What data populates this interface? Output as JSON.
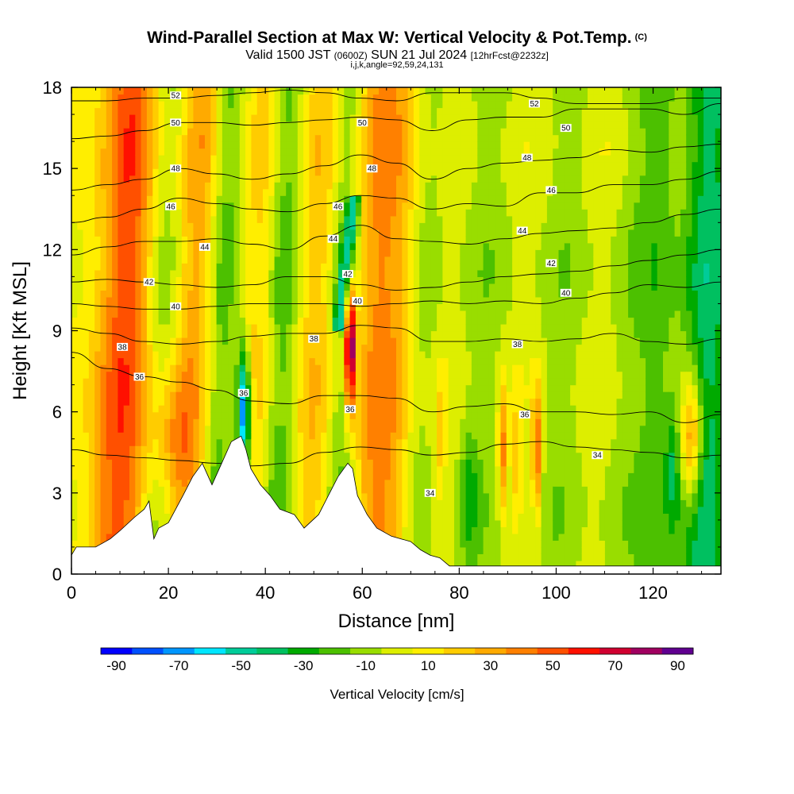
{
  "header": {
    "title": "Wind-Parallel Section at Max W: Vertical Velocity & Pot.Temp.",
    "copyright": "(C)",
    "valid_main": "Valid 1500 JST",
    "valid_zulu": "(0600Z)",
    "valid_date": "SUN 21 Jul 2024",
    "valid_fcst": "[12hrFcst@2232z]",
    "indices": "i,j,k,angle=92,59,24,131"
  },
  "chart_data": {
    "type": "heatmap",
    "xlabel": "Distance [nm]",
    "ylabel": "Height [Kft MSL]",
    "xlim": [
      0,
      134
    ],
    "ylim": [
      0,
      18
    ],
    "xticks": [
      0,
      20,
      40,
      60,
      80,
      100,
      120
    ],
    "yticks": [
      0,
      3,
      6,
      9,
      12,
      15,
      18
    ],
    "colorbar": {
      "label": "Vertical Velocity [cm/s]",
      "bounds": [
        -95,
        -85,
        -75,
        -65,
        -55,
        -45,
        -35,
        -25,
        -15,
        -5,
        5,
        15,
        25,
        35,
        45,
        55,
        65,
        75,
        85,
        95
      ],
      "colors": [
        "#0000ff",
        "#0050ff",
        "#0096ff",
        "#00e6ff",
        "#00cc99",
        "#00c060",
        "#00aa00",
        "#4cc000",
        "#99dd00",
        "#ddee00",
        "#ffee00",
        "#ffcc00",
        "#ffaa00",
        "#ff8000",
        "#ff5000",
        "#ff1000",
        "#d00030",
        "#a00060",
        "#600090"
      ],
      "tick_labels": [
        -90,
        -70,
        -50,
        -30,
        -10,
        10,
        30,
        50,
        70,
        90
      ]
    },
    "terrain_kft": [
      [
        0,
        0.7
      ],
      [
        1,
        1.0
      ],
      [
        5,
        1.0
      ],
      [
        8,
        1.3
      ],
      [
        10,
        1.6
      ],
      [
        13,
        2.1
      ],
      [
        15,
        2.4
      ],
      [
        16,
        2.7
      ],
      [
        17,
        1.3
      ],
      [
        18,
        1.7
      ],
      [
        20,
        1.9
      ],
      [
        23,
        2.9
      ],
      [
        25,
        3.6
      ],
      [
        27,
        4.1
      ],
      [
        29,
        3.3
      ],
      [
        31,
        4.1
      ],
      [
        33,
        4.9
      ],
      [
        35,
        5.1
      ],
      [
        36,
        4.6
      ],
      [
        37,
        3.9
      ],
      [
        39,
        3.3
      ],
      [
        41,
        2.9
      ],
      [
        43,
        2.4
      ],
      [
        46,
        2.2
      ],
      [
        48,
        1.7
      ],
      [
        51,
        2.2
      ],
      [
        53,
        2.9
      ],
      [
        55,
        3.6
      ],
      [
        57,
        4.1
      ],
      [
        58,
        3.9
      ],
      [
        59,
        2.9
      ],
      [
        61,
        2.2
      ],
      [
        63,
        1.7
      ],
      [
        66,
        1.4
      ],
      [
        68,
        1.3
      ],
      [
        70,
        1.2
      ],
      [
        72,
        0.9
      ],
      [
        74,
        0.7
      ],
      [
        76,
        0.6
      ],
      [
        78,
        0.3
      ],
      [
        134,
        0.3
      ]
    ],
    "theta_contours": [
      {
        "label": "34",
        "y": [
          4.6,
          4.4,
          4.3,
          4.2,
          4.1,
          4.0,
          4.1,
          4.5,
          4.7,
          4.6,
          4.4,
          4.5,
          4.8,
          4.9,
          4.7,
          4.6,
          4.5,
          4.3,
          4.4
        ]
      },
      {
        "label": "36",
        "y": [
          8.2,
          7.6,
          7.3,
          7.1,
          6.8,
          6.4,
          6.3,
          6.6,
          6.6,
          6.5,
          6.0,
          6.2,
          6.3,
          6.0,
          6.0,
          5.9,
          6.0,
          5.6,
          5.9
        ]
      },
      {
        "label": "38",
        "y": [
          9.1,
          8.9,
          8.6,
          8.5,
          8.6,
          8.8,
          8.9,
          8.9,
          9.2,
          9.1,
          8.6,
          8.6,
          8.7,
          8.6,
          8.7,
          8.9,
          8.6,
          8.5,
          8.7
        ]
      },
      {
        "label": "40",
        "y": [
          10.0,
          9.9,
          9.8,
          9.8,
          9.9,
          10.0,
          10.0,
          10.0,
          9.9,
          10.0,
          10.1,
          10.0,
          10.1,
          10.0,
          10.2,
          10.4,
          10.7,
          10.6,
          10.8
        ]
      },
      {
        "label": "42",
        "y": [
          10.8,
          10.9,
          10.8,
          10.7,
          10.6,
          10.7,
          11.0,
          11.0,
          10.7,
          10.5,
          10.6,
          10.8,
          11.0,
          11.1,
          11.2,
          11.4,
          11.6,
          11.8,
          12.0
        ]
      },
      {
        "label": "44",
        "y": [
          11.8,
          12.1,
          12.3,
          12.3,
          12.4,
          12.2,
          12.0,
          12.5,
          12.9,
          12.4,
          12.3,
          12.2,
          12.4,
          12.6,
          12.7,
          12.8,
          13.0,
          13.3,
          13.5
        ]
      },
      {
        "label": "46",
        "y": [
          13.0,
          13.2,
          13.5,
          13.9,
          13.7,
          13.5,
          13.4,
          13.7,
          14.0,
          13.9,
          13.5,
          13.7,
          13.6,
          14.1,
          14.1,
          14.4,
          14.4,
          14.6,
          14.9
        ]
      },
      {
        "label": "48",
        "y": [
          14.2,
          14.4,
          14.6,
          15.0,
          14.8,
          14.6,
          14.8,
          15.1,
          15.5,
          15.2,
          14.6,
          15.0,
          15.2,
          15.3,
          15.4,
          15.7,
          15.6,
          15.8,
          15.9
        ]
      },
      {
        "label": "50",
        "y": [
          16.1,
          16.2,
          16.4,
          16.7,
          16.7,
          16.6,
          16.7,
          16.8,
          16.9,
          16.8,
          16.4,
          16.8,
          16.9,
          16.9,
          17.2,
          17.2,
          17.2,
          17.0,
          17.4
        ]
      },
      {
        "label": "52",
        "y": [
          17.5,
          17.5,
          17.6,
          17.6,
          17.7,
          17.8,
          17.9,
          17.8,
          17.6,
          17.5,
          17.8,
          17.8,
          17.8,
          17.6,
          17.4,
          17.4,
          17.4,
          17.6,
          17.6
        ]
      }
    ],
    "contour_x": [
      0,
      7.4,
      14.9,
      22.3,
      29.8,
      37.2,
      44.7,
      52.1,
      59.6,
      67.0,
      74.4,
      81.9,
      89.3,
      96.8,
      104.2,
      111.7,
      119.1,
      126.6,
      134
    ],
    "theta_labels": [
      {
        "text": "52",
        "x": 21.5,
        "y": 17.7
      },
      {
        "text": "50",
        "x": 21.5,
        "y": 16.7
      },
      {
        "text": "48",
        "x": 21.5,
        "y": 15.0
      },
      {
        "text": "46",
        "x": 20.5,
        "y": 13.6
      },
      {
        "text": "44",
        "x": 27.5,
        "y": 12.1
      },
      {
        "text": "42",
        "x": 16,
        "y": 10.8
      },
      {
        "text": "40",
        "x": 21.5,
        "y": 9.9
      },
      {
        "text": "38",
        "x": 10.5,
        "y": 8.4
      },
      {
        "text": "36",
        "x": 14,
        "y": 7.3
      },
      {
        "text": "36",
        "x": 35.5,
        "y": 6.7
      },
      {
        "text": "38",
        "x": 50,
        "y": 8.7
      },
      {
        "text": "46",
        "x": 55,
        "y": 13.6
      },
      {
        "text": "44",
        "x": 54,
        "y": 12.4
      },
      {
        "text": "42",
        "x": 57,
        "y": 11.1
      },
      {
        "text": "40",
        "x": 59,
        "y": 10.1
      },
      {
        "text": "50",
        "x": 60,
        "y": 16.7
      },
      {
        "text": "48",
        "x": 62,
        "y": 15.0
      },
      {
        "text": "36",
        "x": 57.5,
        "y": 6.1
      },
      {
        "text": "52",
        "x": 95.5,
        "y": 17.4
      },
      {
        "text": "50",
        "x": 102,
        "y": 16.5
      },
      {
        "text": "48",
        "x": 94,
        "y": 15.4
      },
      {
        "text": "46",
        "x": 99,
        "y": 14.2
      },
      {
        "text": "44",
        "x": 93,
        "y": 12.7
      },
      {
        "text": "42",
        "x": 99,
        "y": 11.5
      },
      {
        "text": "40",
        "x": 102,
        "y": 10.4
      },
      {
        "text": "38",
        "x": 92,
        "y": 8.5
      },
      {
        "text": "36",
        "x": 93.5,
        "y": 5.9
      },
      {
        "text": "34",
        "x": 108.5,
        "y": 4.4
      },
      {
        "text": "34",
        "x": 74,
        "y": 3.0
      }
    ]
  }
}
